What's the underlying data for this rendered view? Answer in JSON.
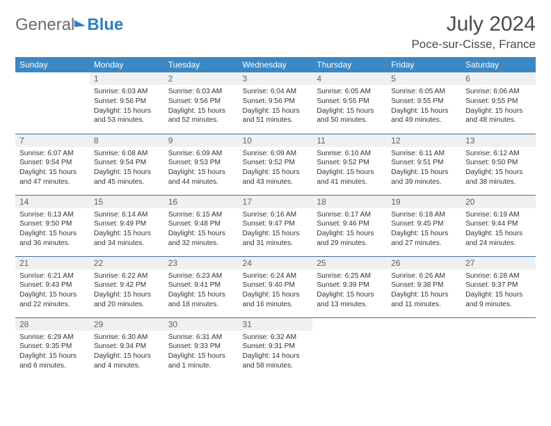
{
  "logo": {
    "general": "General",
    "blue": "Blue"
  },
  "title": "July 2024",
  "location": "Poce-sur-Cisse, France",
  "weekdays": [
    "Sunday",
    "Monday",
    "Tuesday",
    "Wednesday",
    "Thursday",
    "Friday",
    "Saturday"
  ],
  "header_bg": "#3b88c4",
  "row_divider": "#3b6fa0",
  "daynum_bg": "#eef0f1",
  "cells": [
    [
      null,
      {
        "n": "1",
        "sr": "6:03 AM",
        "ss": "9:56 PM",
        "dl": "15 hours and 53 minutes."
      },
      {
        "n": "2",
        "sr": "6:03 AM",
        "ss": "9:56 PM",
        "dl": "15 hours and 52 minutes."
      },
      {
        "n": "3",
        "sr": "6:04 AM",
        "ss": "9:56 PM",
        "dl": "15 hours and 51 minutes."
      },
      {
        "n": "4",
        "sr": "6:05 AM",
        "ss": "9:55 PM",
        "dl": "15 hours and 50 minutes."
      },
      {
        "n": "5",
        "sr": "6:05 AM",
        "ss": "9:55 PM",
        "dl": "15 hours and 49 minutes."
      },
      {
        "n": "6",
        "sr": "6:06 AM",
        "ss": "9:55 PM",
        "dl": "15 hours and 48 minutes."
      }
    ],
    [
      {
        "n": "7",
        "sr": "6:07 AM",
        "ss": "9:54 PM",
        "dl": "15 hours and 47 minutes."
      },
      {
        "n": "8",
        "sr": "6:08 AM",
        "ss": "9:54 PM",
        "dl": "15 hours and 45 minutes."
      },
      {
        "n": "9",
        "sr": "6:09 AM",
        "ss": "9:53 PM",
        "dl": "15 hours and 44 minutes."
      },
      {
        "n": "10",
        "sr": "6:09 AM",
        "ss": "9:52 PM",
        "dl": "15 hours and 43 minutes."
      },
      {
        "n": "11",
        "sr": "6:10 AM",
        "ss": "9:52 PM",
        "dl": "15 hours and 41 minutes."
      },
      {
        "n": "12",
        "sr": "6:11 AM",
        "ss": "9:51 PM",
        "dl": "15 hours and 39 minutes."
      },
      {
        "n": "13",
        "sr": "6:12 AM",
        "ss": "9:50 PM",
        "dl": "15 hours and 38 minutes."
      }
    ],
    [
      {
        "n": "14",
        "sr": "6:13 AM",
        "ss": "9:50 PM",
        "dl": "15 hours and 36 minutes."
      },
      {
        "n": "15",
        "sr": "6:14 AM",
        "ss": "9:49 PM",
        "dl": "15 hours and 34 minutes."
      },
      {
        "n": "16",
        "sr": "6:15 AM",
        "ss": "9:48 PM",
        "dl": "15 hours and 32 minutes."
      },
      {
        "n": "17",
        "sr": "6:16 AM",
        "ss": "9:47 PM",
        "dl": "15 hours and 31 minutes."
      },
      {
        "n": "18",
        "sr": "6:17 AM",
        "ss": "9:46 PM",
        "dl": "15 hours and 29 minutes."
      },
      {
        "n": "19",
        "sr": "6:18 AM",
        "ss": "9:45 PM",
        "dl": "15 hours and 27 minutes."
      },
      {
        "n": "20",
        "sr": "6:19 AM",
        "ss": "9:44 PM",
        "dl": "15 hours and 24 minutes."
      }
    ],
    [
      {
        "n": "21",
        "sr": "6:21 AM",
        "ss": "9:43 PM",
        "dl": "15 hours and 22 minutes."
      },
      {
        "n": "22",
        "sr": "6:22 AM",
        "ss": "9:42 PM",
        "dl": "15 hours and 20 minutes."
      },
      {
        "n": "23",
        "sr": "6:23 AM",
        "ss": "9:41 PM",
        "dl": "15 hours and 18 minutes."
      },
      {
        "n": "24",
        "sr": "6:24 AM",
        "ss": "9:40 PM",
        "dl": "15 hours and 16 minutes."
      },
      {
        "n": "25",
        "sr": "6:25 AM",
        "ss": "9:39 PM",
        "dl": "15 hours and 13 minutes."
      },
      {
        "n": "26",
        "sr": "6:26 AM",
        "ss": "9:38 PM",
        "dl": "15 hours and 11 minutes."
      },
      {
        "n": "27",
        "sr": "6:28 AM",
        "ss": "9:37 PM",
        "dl": "15 hours and 9 minutes."
      }
    ],
    [
      {
        "n": "28",
        "sr": "6:29 AM",
        "ss": "9:35 PM",
        "dl": "15 hours and 6 minutes."
      },
      {
        "n": "29",
        "sr": "6:30 AM",
        "ss": "9:34 PM",
        "dl": "15 hours and 4 minutes."
      },
      {
        "n": "30",
        "sr": "6:31 AM",
        "ss": "9:33 PM",
        "dl": "15 hours and 1 minute."
      },
      {
        "n": "31",
        "sr": "6:32 AM",
        "ss": "9:31 PM",
        "dl": "14 hours and 58 minutes."
      },
      null,
      null,
      null
    ]
  ],
  "labels": {
    "sunrise": "Sunrise:",
    "sunset": "Sunset:",
    "daylight": "Daylight:"
  }
}
